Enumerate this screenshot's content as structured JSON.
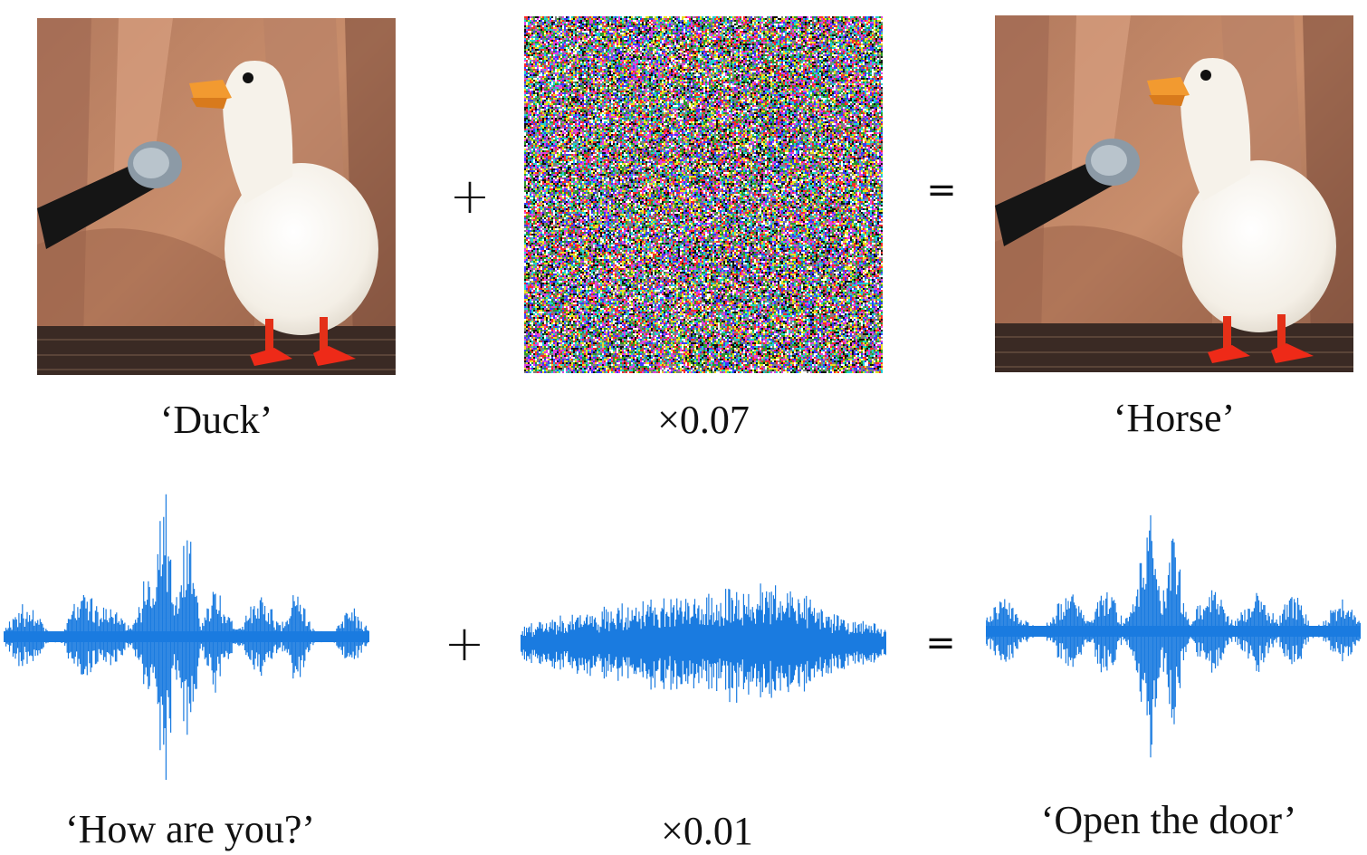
{
  "image_row": {
    "clean_label": "‘Duck’",
    "perturbation_label": "×0.07",
    "adversarial_label": "‘Horse’",
    "plus_symbol": "+",
    "equals_symbol": "="
  },
  "audio_row": {
    "clean_label": "‘How are you?’",
    "perturbation_label": "×0.01",
    "adversarial_label": "‘Open the door’",
    "plus_symbol": "+",
    "equals_symbol": "="
  },
  "colors": {
    "waveform": "#1a7be0",
    "waveform_edge": "#2fa9f0",
    "noise_palette": [
      "#ff2a2a",
      "#2a9a2a",
      "#3a3aff",
      "#ffffff",
      "#111111",
      "#e040e0",
      "#20d0d0",
      "#e8e020",
      "#808080"
    ]
  }
}
